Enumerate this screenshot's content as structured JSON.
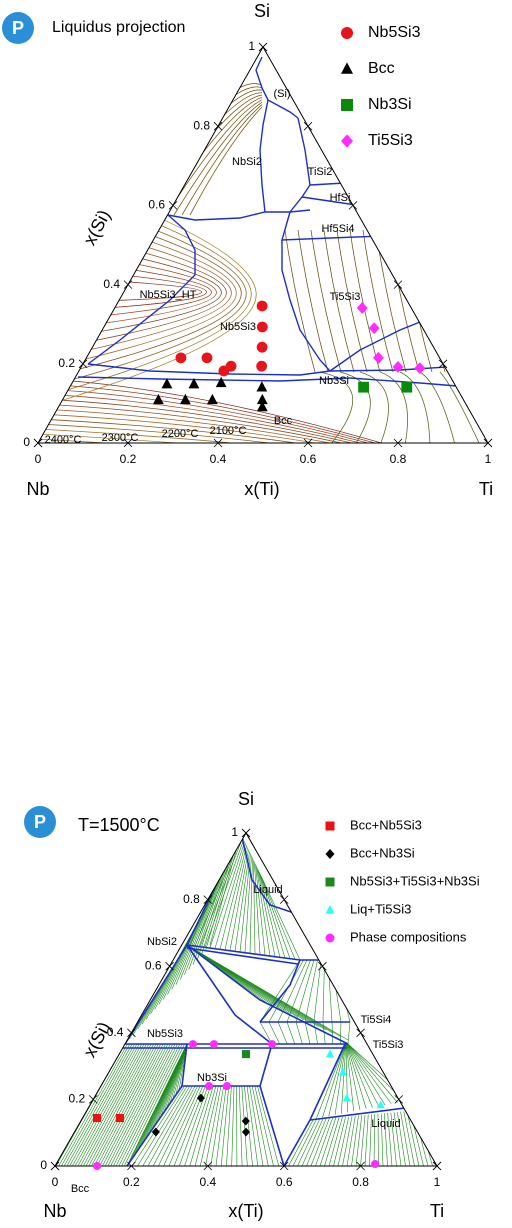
{
  "chart_data": [
    {
      "type": "ternary",
      "title": "Liquidus projection",
      "vertex_labels": [
        "Si",
        "Nb",
        "Ti"
      ],
      "xlabel": "x(Ti)",
      "ylabel": "x(Si)",
      "xlim": [
        0,
        1
      ],
      "ylim": [
        0,
        1
      ],
      "xticks": [
        0,
        0.2,
        0.4,
        0.6,
        0.8,
        1
      ],
      "yticks": [
        0,
        0.2,
        0.4,
        0.6,
        0.8,
        1
      ],
      "legend": "upper right",
      "annotations": [
        "(Si)",
        "NbSi2",
        "TiSi2",
        "HfSi",
        "Hf5Si4",
        "Nb5Si3_HT",
        "Nb5Si3",
        "Ti5Si3",
        "Nb3Si",
        "Bcc",
        "2400°C",
        "2300°C",
        "2200°C",
        "2100°C"
      ],
      "series": [
        {
          "name": "Nb5Si3",
          "color": "#e8141b",
          "marker": "circle",
          "x": [
            0.325,
            0.352,
            0.377,
            0.4,
            0.21,
            0.268,
            0.332,
            0.322
          ],
          "y": [
            0.346,
            0.293,
            0.242,
            0.194,
            0.215,
            0.215,
            0.194,
            0.182
          ]
        },
        {
          "name": "Bcc",
          "color": "#000000",
          "marker": "triangle",
          "x": [
            0.212,
            0.272,
            0.331,
            0.427,
            0.213,
            0.273,
            0.333,
            0.444,
            0.453
          ],
          "y": [
            0.149,
            0.149,
            0.152,
            0.141,
            0.109,
            0.109,
            0.109,
            0.109,
            0.091
          ]
        },
        {
          "name": "Nb3Si",
          "color": "#0a8a0a",
          "marker": "square",
          "x": [
            0.653,
            0.749
          ],
          "y": [
            0.141,
            0.141
          ]
        },
        {
          "name": "Ti5Si3",
          "color": "#ff2bff",
          "marker": "diamond",
          "x": [
            0.55,
            0.602,
            0.649,
            0.704,
            0.754
          ],
          "y": [
            0.341,
            0.29,
            0.215,
            0.192,
            0.189
          ]
        }
      ]
    },
    {
      "type": "ternary",
      "title": "T=1500°C",
      "vertex_labels": [
        "Si",
        "Nb",
        "Ti"
      ],
      "xlabel": "x(Ti)",
      "ylabel": "x(Si)",
      "xlim": [
        0,
        1
      ],
      "ylim": [
        0,
        1
      ],
      "xticks": [
        0,
        0.2,
        0.4,
        0.6,
        0.8,
        1
      ],
      "yticks": [
        0,
        0.2,
        0.4,
        0.6,
        0.8,
        1
      ],
      "legend": "upper right",
      "annotations": [
        "Liquid",
        "NbSi2",
        "Ti5Si4",
        "Ti5Si3",
        "Nb5Si3",
        "Nb3Si",
        "Liquid",
        "Bcc"
      ],
      "series": [
        {
          "name": "Bcc+Nb5Si3",
          "color": "#ee1111",
          "marker": "square",
          "x": [
            0.038,
            0.098
          ],
          "y": [
            0.144,
            0.144
          ]
        },
        {
          "name": "Bcc+Nb3Si",
          "color": "#000000",
          "marker": "diamond",
          "x": [
            0.28,
            0.213,
            0.432,
            0.449
          ],
          "y": [
            0.204,
            0.102,
            0.135,
            0.102
          ]
        },
        {
          "name": "Nb5Si3+Ti5Si3+Nb3Si",
          "color": "#1a8a1a",
          "marker": "square",
          "x": [
            0.332
          ],
          "y": [
            0.336
          ]
        },
        {
          "name": "Liq+Ti5Si3",
          "color": "#22ffff",
          "marker": "triangle",
          "x": [
            0.552,
            0.613,
            0.662,
            0.761
          ],
          "y": [
            0.336,
            0.282,
            0.204,
            0.183
          ]
        },
        {
          "name": "Phase compositions",
          "color": "#ff2bff",
          "marker": "circle",
          "x": [
            0.178,
            0.233,
            0.385,
            0.283,
            0.33,
            0.11,
            0.835
          ],
          "y": [
            0.366,
            0.366,
            0.366,
            0.24,
            0.24,
            0,
            0.006
          ]
        }
      ]
    }
  ]
}
